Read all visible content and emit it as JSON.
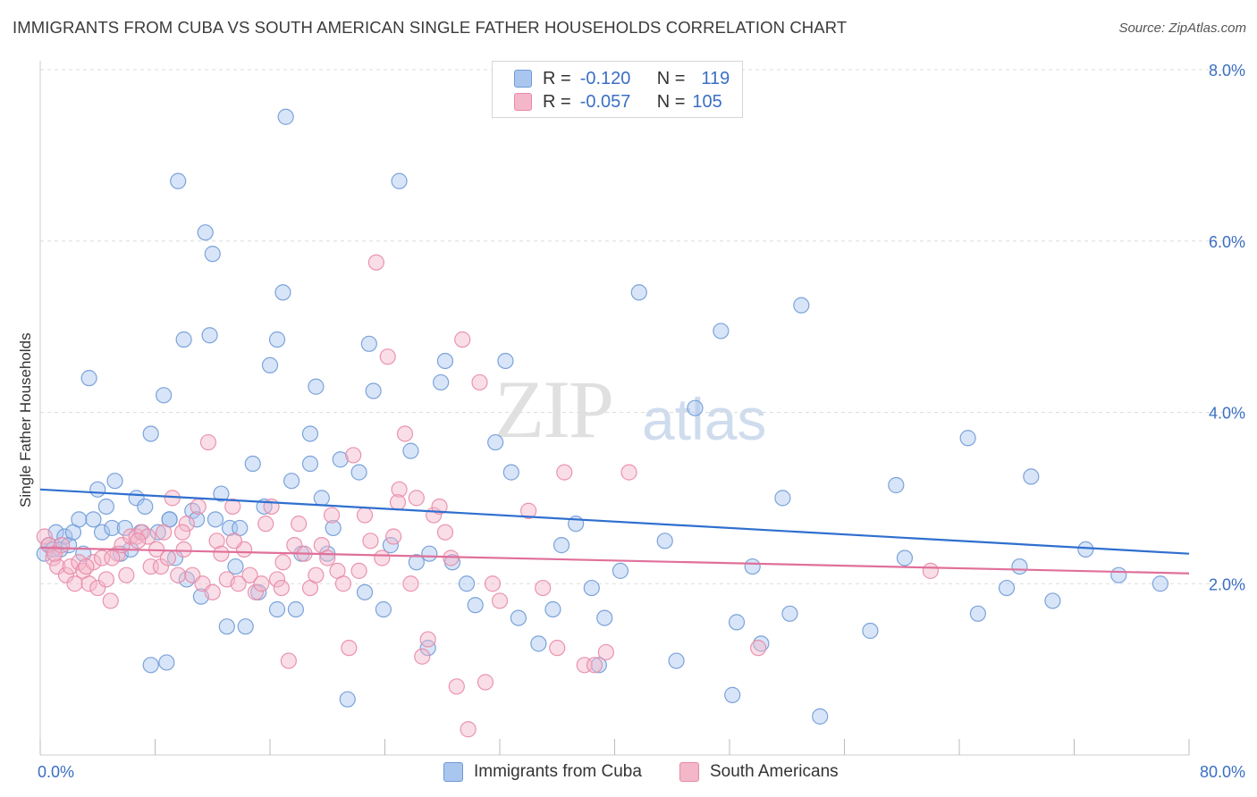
{
  "title": "IMMIGRANTS FROM CUBA VS SOUTH AMERICAN SINGLE FATHER HOUSEHOLDS CORRELATION CHART",
  "source": "Source: ZipAtlas.com",
  "watermark": {
    "zip": "ZIP",
    "atlas": "atlas"
  },
  "legend": {
    "rows": [
      {
        "r_label": "R =",
        "r_value": "-0.120",
        "n_label": "N =",
        "n_value": "119"
      },
      {
        "r_label": "R =",
        "r_value": "-0.057",
        "n_label": "N =",
        "n_value": "105"
      }
    ]
  },
  "bottom_legend": {
    "series1": "Immigrants from Cuba",
    "series2": "South Americans"
  },
  "colors": {
    "blue_fill": "#a9c6ef",
    "blue_stroke": "#6f9ad6",
    "blue_line": "#2f6fcf",
    "pink_fill": "#f4b6c9",
    "pink_stroke": "#e88aa6",
    "pink_line": "#e0709a",
    "axis_label": "#3a6fc4",
    "grid": "#dddddd"
  },
  "chart_data": {
    "type": "scatter",
    "title": "IMMIGRANTS FROM CUBA VS SOUTH AMERICAN SINGLE FATHER HOUSEHOLDS CORRELATION CHART",
    "xlabel": "",
    "ylabel": "Single Father Households",
    "xlim": [
      0,
      80
    ],
    "ylim": [
      0,
      8.0
    ],
    "x_tick_labels": [
      "0.0%",
      "80.0%"
    ],
    "y_tick_labels": [
      "2.0%",
      "4.0%",
      "6.0%",
      "8.0%"
    ],
    "y_ticks": [
      2,
      4,
      6,
      8
    ],
    "grid": true,
    "legend_position": "top-center",
    "series": [
      {
        "name": "Immigrants from Cuba",
        "trend": {
          "x": [
            0,
            80
          ],
          "y": [
            3.1,
            2.35
          ]
        },
        "points": [
          [
            0.3,
            2.35
          ],
          [
            0.6,
            2.45
          ],
          [
            0.9,
            2.4
          ],
          [
            1.1,
            2.6
          ],
          [
            1.4,
            2.4
          ],
          [
            1.7,
            2.55
          ],
          [
            2.0,
            2.45
          ],
          [
            2.3,
            2.6
          ],
          [
            2.7,
            2.75
          ],
          [
            3.0,
            2.35
          ],
          [
            3.4,
            4.4
          ],
          [
            3.7,
            2.75
          ],
          [
            4.0,
            3.1
          ],
          [
            4.3,
            2.6
          ],
          [
            4.6,
            2.9
          ],
          [
            5.0,
            2.65
          ],
          [
            5.2,
            3.2
          ],
          [
            5.6,
            2.35
          ],
          [
            5.9,
            2.65
          ],
          [
            6.3,
            2.4
          ],
          [
            6.7,
            3.0
          ],
          [
            7.0,
            2.6
          ],
          [
            7.3,
            2.9
          ],
          [
            7.7,
            1.05
          ],
          [
            7.7,
            3.75
          ],
          [
            8.2,
            2.6
          ],
          [
            8.6,
            4.2
          ],
          [
            8.8,
            1.08
          ],
          [
            9.0,
            2.75
          ],
          [
            9.4,
            2.3
          ],
          [
            9.0,
            2.75
          ],
          [
            9.6,
            6.7
          ],
          [
            10.0,
            4.85
          ],
          [
            10.2,
            2.05
          ],
          [
            10.6,
            2.85
          ],
          [
            10.9,
            2.75
          ],
          [
            11.2,
            1.85
          ],
          [
            11.5,
            6.1
          ],
          [
            11.8,
            4.9
          ],
          [
            12.0,
            5.85
          ],
          [
            12.2,
            2.75
          ],
          [
            12.6,
            3.05
          ],
          [
            13.0,
            1.5
          ],
          [
            13.2,
            2.65
          ],
          [
            13.6,
            2.2
          ],
          [
            13.9,
            2.65
          ],
          [
            14.3,
            1.5
          ],
          [
            14.8,
            3.4
          ],
          [
            15.2,
            1.9
          ],
          [
            15.6,
            2.9
          ],
          [
            16.0,
            4.55
          ],
          [
            16.5,
            1.7
          ],
          [
            16.5,
            4.85
          ],
          [
            16.9,
            5.4
          ],
          [
            17.1,
            7.45
          ],
          [
            17.5,
            3.2
          ],
          [
            17.8,
            1.7
          ],
          [
            18.2,
            2.35
          ],
          [
            18.8,
            3.75
          ],
          [
            18.8,
            3.4
          ],
          [
            19.2,
            4.3
          ],
          [
            19.6,
            3.0
          ],
          [
            20.0,
            2.35
          ],
          [
            20.4,
            2.65
          ],
          [
            20.9,
            3.45
          ],
          [
            21.4,
            0.65
          ],
          [
            22.2,
            3.3
          ],
          [
            22.6,
            1.9
          ],
          [
            22.9,
            4.8
          ],
          [
            23.2,
            4.25
          ],
          [
            23.9,
            1.7
          ],
          [
            24.4,
            2.45
          ],
          [
            25.0,
            6.7
          ],
          [
            25.8,
            3.55
          ],
          [
            26.2,
            2.25
          ],
          [
            27.0,
            1.25
          ],
          [
            27.1,
            2.35
          ],
          [
            27.9,
            4.35
          ],
          [
            28.2,
            4.6
          ],
          [
            28.7,
            2.25
          ],
          [
            29.7,
            2.0
          ],
          [
            30.3,
            1.75
          ],
          [
            31.7,
            3.65
          ],
          [
            32.4,
            4.6
          ],
          [
            32.8,
            3.3
          ],
          [
            33.3,
            1.6
          ],
          [
            34.7,
            1.3
          ],
          [
            35.7,
            1.7
          ],
          [
            36.3,
            2.45
          ],
          [
            37.3,
            2.7
          ],
          [
            38.4,
            1.95
          ],
          [
            38.9,
            1.05
          ],
          [
            39.3,
            1.6
          ],
          [
            40.4,
            2.15
          ],
          [
            41.7,
            5.4
          ],
          [
            43.5,
            2.5
          ],
          [
            44.3,
            1.1
          ],
          [
            45.6,
            4.05
          ],
          [
            47.4,
            4.95
          ],
          [
            48.2,
            0.7
          ],
          [
            48.5,
            1.55
          ],
          [
            49.6,
            2.2
          ],
          [
            50.2,
            1.3
          ],
          [
            51.7,
            3.0
          ],
          [
            52.2,
            1.65
          ],
          [
            53.0,
            5.25
          ],
          [
            54.3,
            0.45
          ],
          [
            57.8,
            1.45
          ],
          [
            59.6,
            3.15
          ],
          [
            60.2,
            2.3
          ],
          [
            64.6,
            3.7
          ],
          [
            65.3,
            1.65
          ],
          [
            67.3,
            1.95
          ],
          [
            68.2,
            2.2
          ],
          [
            69.0,
            3.25
          ],
          [
            70.5,
            1.8
          ],
          [
            72.8,
            2.4
          ],
          [
            75.1,
            2.1
          ],
          [
            78.0,
            2.0
          ]
        ]
      },
      {
        "name": "South Americans",
        "trend": {
          "x": [
            0,
            80
          ],
          "y": [
            2.42,
            2.12
          ]
        },
        "points": [
          [
            0.3,
            2.55
          ],
          [
            0.6,
            2.45
          ],
          [
            0.9,
            2.3
          ],
          [
            1.2,
            2.2
          ],
          [
            1.5,
            2.45
          ],
          [
            1.8,
            2.1
          ],
          [
            2.1,
            2.2
          ],
          [
            2.4,
            2.0
          ],
          [
            2.7,
            2.25
          ],
          [
            3.0,
            2.15
          ],
          [
            3.4,
            2.0
          ],
          [
            3.7,
            2.25
          ],
          [
            4.0,
            1.95
          ],
          [
            4.3,
            2.3
          ],
          [
            4.6,
            2.05
          ],
          [
            4.9,
            1.8
          ],
          [
            5.4,
            2.35
          ],
          [
            5.7,
            2.45
          ],
          [
            6.0,
            2.1
          ],
          [
            6.3,
            2.55
          ],
          [
            6.7,
            2.55
          ],
          [
            7.1,
            2.6
          ],
          [
            7.5,
            2.55
          ],
          [
            7.7,
            2.2
          ],
          [
            8.1,
            2.4
          ],
          [
            8.4,
            2.2
          ],
          [
            8.6,
            2.6
          ],
          [
            8.9,
            2.3
          ],
          [
            9.2,
            3.0
          ],
          [
            9.6,
            2.1
          ],
          [
            10.0,
            2.4
          ],
          [
            10.2,
            2.7
          ],
          [
            10.6,
            2.1
          ],
          [
            11.0,
            2.9
          ],
          [
            11.3,
            2.0
          ],
          [
            11.7,
            3.65
          ],
          [
            12.0,
            1.9
          ],
          [
            12.3,
            2.5
          ],
          [
            12.6,
            2.35
          ],
          [
            13.0,
            2.05
          ],
          [
            13.4,
            2.9
          ],
          [
            13.8,
            2.0
          ],
          [
            14.2,
            2.4
          ],
          [
            14.6,
            2.1
          ],
          [
            15.0,
            1.9
          ],
          [
            15.4,
            2.0
          ],
          [
            15.7,
            2.7
          ],
          [
            16.1,
            2.9
          ],
          [
            16.5,
            2.05
          ],
          [
            16.9,
            2.25
          ],
          [
            17.3,
            1.1
          ],
          [
            17.7,
            2.45
          ],
          [
            18.0,
            2.7
          ],
          [
            18.4,
            2.35
          ],
          [
            18.8,
            1.95
          ],
          [
            19.2,
            2.1
          ],
          [
            19.6,
            2.45
          ],
          [
            20.0,
            2.3
          ],
          [
            20.3,
            2.8
          ],
          [
            20.7,
            2.15
          ],
          [
            21.1,
            2.0
          ],
          [
            21.5,
            1.25
          ],
          [
            21.8,
            3.5
          ],
          [
            22.2,
            2.15
          ],
          [
            22.6,
            2.8
          ],
          [
            23.0,
            2.5
          ],
          [
            23.4,
            5.75
          ],
          [
            23.8,
            2.3
          ],
          [
            24.2,
            4.65
          ],
          [
            24.6,
            2.55
          ],
          [
            25.0,
            3.1
          ],
          [
            25.4,
            3.75
          ],
          [
            25.8,
            2.0
          ],
          [
            26.2,
            3.0
          ],
          [
            26.6,
            1.15
          ],
          [
            27.0,
            1.35
          ],
          [
            27.4,
            2.8
          ],
          [
            27.8,
            2.9
          ],
          [
            28.2,
            2.6
          ],
          [
            28.6,
            2.3
          ],
          [
            29.0,
            0.8
          ],
          [
            29.4,
            4.85
          ],
          [
            29.8,
            0.3
          ],
          [
            30.6,
            4.35
          ],
          [
            31.0,
            0.85
          ],
          [
            31.5,
            2.0
          ],
          [
            32.0,
            1.8
          ],
          [
            34.0,
            2.85
          ],
          [
            35.0,
            1.95
          ],
          [
            36.0,
            1.25
          ],
          [
            36.5,
            3.3
          ],
          [
            37.9,
            1.05
          ],
          [
            38.6,
            1.05
          ],
          [
            39.4,
            1.2
          ],
          [
            41.0,
            3.3
          ],
          [
            50.0,
            1.25
          ],
          [
            62.0,
            2.15
          ],
          [
            16.8,
            1.95
          ],
          [
            13.5,
            2.5
          ],
          [
            9.9,
            2.6
          ],
          [
            5.0,
            2.3
          ],
          [
            6.8,
            2.5
          ],
          [
            3.2,
            2.2
          ],
          [
            1.0,
            2.35
          ],
          [
            24.9,
            2.95
          ]
        ]
      }
    ]
  }
}
